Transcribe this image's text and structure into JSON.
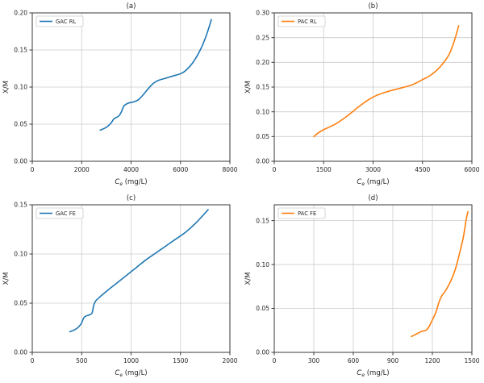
{
  "figure": {
    "background": "#ffffff",
    "text_color": "#262626",
    "grid_color": "#cccccc",
    "frame_color": "#3a3a3a"
  },
  "chart_data": [
    {
      "id": "a",
      "type": "line",
      "title": "(a)",
      "legend": "GAC RL",
      "color": "#1f77b4",
      "xlabel": {
        "symbol": "C",
        "subscript": "e",
        "rest": " (mg/L)"
      },
      "ylabel": "X/M",
      "xlim": [
        0,
        8000
      ],
      "ylim": [
        0,
        0.2
      ],
      "xticks": [
        0,
        2000,
        4000,
        6000,
        8000
      ],
      "yticks": [
        0.0,
        0.05,
        0.1,
        0.15,
        0.2
      ],
      "grid": true,
      "legend_position": "upper-left",
      "x": [
        2750,
        2900,
        3050,
        3200,
        3300,
        3400,
        3500,
        3600,
        3700,
        3800,
        3950,
        4100,
        4300,
        4500,
        4700,
        4900,
        5100,
        5400,
        5700,
        6000,
        6200,
        6500,
        6800,
        7050,
        7250
      ],
      "y": [
        0.042,
        0.044,
        0.047,
        0.052,
        0.057,
        0.059,
        0.061,
        0.066,
        0.074,
        0.077,
        0.079,
        0.08,
        0.083,
        0.09,
        0.098,
        0.105,
        0.109,
        0.112,
        0.115,
        0.118,
        0.122,
        0.133,
        0.15,
        0.17,
        0.191
      ]
    },
    {
      "id": "b",
      "type": "line",
      "title": "(b)",
      "legend": "PAC RL",
      "color": "#ff7f0e",
      "xlabel": {
        "symbol": "C",
        "subscript": "e",
        "rest": " (mg/L)"
      },
      "ylabel": "X/M",
      "xlim": [
        0,
        6000
      ],
      "ylim": [
        0,
        0.3
      ],
      "xticks": [
        0,
        1500,
        3000,
        4500,
        6000
      ],
      "yticks": [
        0.0,
        0.05,
        0.1,
        0.15,
        0.2,
        0.25,
        0.3
      ],
      "grid": true,
      "legend_position": "upper-left",
      "x": [
        1200,
        1350,
        1500,
        1700,
        1900,
        2100,
        2300,
        2500,
        2700,
        2900,
        3100,
        3300,
        3600,
        3900,
        4200,
        4500,
        4700,
        4900,
        5100,
        5300,
        5450,
        5600
      ],
      "y": [
        0.05,
        0.058,
        0.064,
        0.07,
        0.077,
        0.086,
        0.096,
        0.107,
        0.117,
        0.126,
        0.133,
        0.138,
        0.144,
        0.149,
        0.155,
        0.165,
        0.172,
        0.182,
        0.196,
        0.215,
        0.24,
        0.274
      ]
    },
    {
      "id": "c",
      "type": "line",
      "title": "(c)",
      "legend": "GAC FE",
      "color": "#1f77b4",
      "xlabel": {
        "symbol": "C",
        "subscript": "e",
        "rest": " (mg/L)"
      },
      "ylabel": "X/M",
      "xlim": [
        0,
        2000
      ],
      "ylim": [
        0,
        0.15
      ],
      "xticks": [
        0,
        500,
        1000,
        1500,
        2000
      ],
      "yticks": [
        0.0,
        0.05,
        0.1,
        0.15
      ],
      "grid": true,
      "legend_position": "upper-left",
      "x": [
        380,
        430,
        470,
        500,
        520,
        545,
        575,
        605,
        620,
        640,
        680,
        750,
        850,
        950,
        1050,
        1150,
        1250,
        1350,
        1450,
        1550,
        1650,
        1780
      ],
      "y": [
        0.021,
        0.023,
        0.026,
        0.03,
        0.035,
        0.037,
        0.038,
        0.04,
        0.047,
        0.052,
        0.056,
        0.062,
        0.07,
        0.078,
        0.086,
        0.094,
        0.101,
        0.108,
        0.115,
        0.122,
        0.131,
        0.145
      ]
    },
    {
      "id": "d",
      "type": "line",
      "title": "(d)",
      "legend": "PAC FE",
      "color": "#ff7f0e",
      "xlabel": {
        "symbol": "C",
        "subscript": "e",
        "rest": " (mg/L)"
      },
      "ylabel": "X/M",
      "xlim": [
        0,
        1500
      ],
      "ylim": [
        0,
        0.168
      ],
      "xticks": [
        0,
        300,
        600,
        900,
        1200,
        1500
      ],
      "yticks": [
        0.0,
        0.05,
        0.1,
        0.15
      ],
      "grid": true,
      "legend_position": "upper-left",
      "x": [
        1040,
        1080,
        1120,
        1150,
        1170,
        1190,
        1210,
        1230,
        1250,
        1270,
        1290,
        1315,
        1345,
        1375,
        1405,
        1435,
        1455,
        1470
      ],
      "y": [
        0.018,
        0.021,
        0.024,
        0.025,
        0.028,
        0.034,
        0.04,
        0.047,
        0.057,
        0.064,
        0.068,
        0.074,
        0.083,
        0.095,
        0.112,
        0.131,
        0.15,
        0.16
      ]
    }
  ]
}
